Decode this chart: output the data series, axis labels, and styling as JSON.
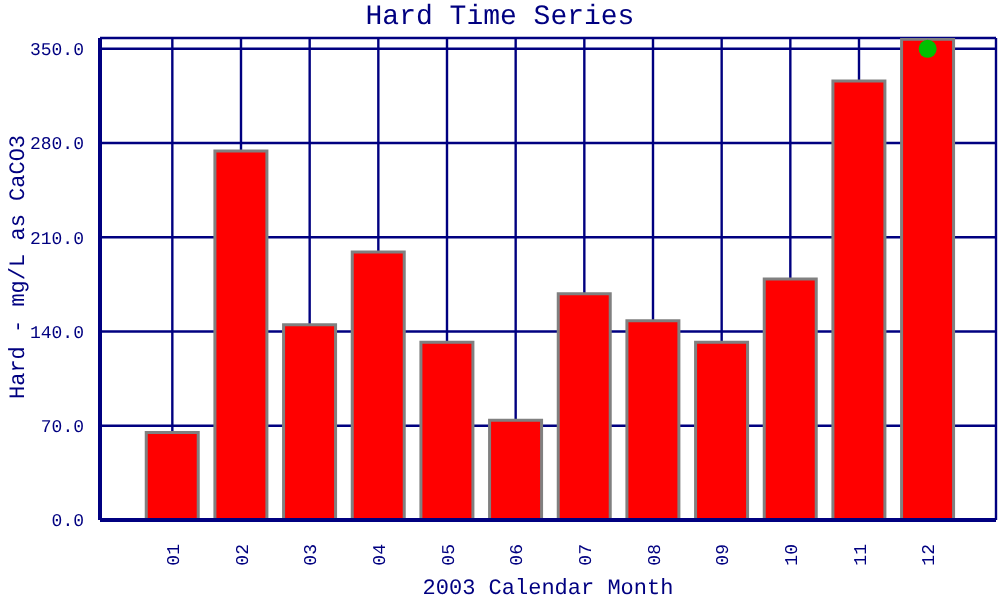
{
  "chart_data": {
    "type": "bar",
    "title": "Hard Time Series",
    "xlabel": "2003 Calendar Month",
    "ylabel": "Hard - mg/L as CaCO3",
    "categories": [
      "01",
      "02",
      "03",
      "04",
      "05",
      "06",
      "07",
      "08",
      "09",
      "10",
      "11",
      "12"
    ],
    "series": [
      {
        "color": "#ff0000",
        "values": [
          65,
          274,
          145,
          199,
          132,
          74,
          168,
          148,
          132,
          179,
          326,
          357
        ]
      },
      {
        "type": "scatter",
        "color": "#00c000",
        "x": [
          "12"
        ],
        "values": [
          350
        ],
        "marker": "circle"
      }
    ],
    "ylim": [
      0,
      358
    ],
    "yticks": [
      {
        "value": 0,
        "label": "0.0"
      },
      {
        "value": 70,
        "label": "70.0"
      },
      {
        "value": 140,
        "label": "140.0"
      },
      {
        "value": 210,
        "label": "210.0"
      },
      {
        "value": 280,
        "label": "280.0"
      },
      {
        "value": 350,
        "label": "350.0"
      }
    ],
    "grid": true,
    "legend": false
  }
}
